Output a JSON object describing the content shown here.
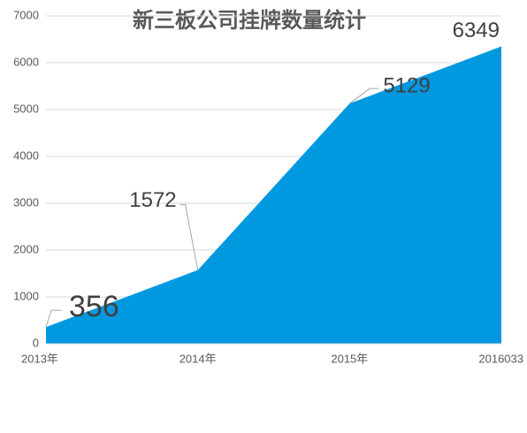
{
  "chart_data": {
    "type": "area",
    "title": "新三板公司挂牌数量统计",
    "categories": [
      "2013年",
      "2014年",
      "2015年",
      "2016033"
    ],
    "values": [
      356,
      1572,
      5129,
      6349
    ],
    "color": "#0099e0",
    "ylim": [
      0,
      7000
    ],
    "yticks": [
      0,
      1000,
      2000,
      3000,
      4000,
      5000,
      6000,
      7000
    ],
    "grid": true
  }
}
